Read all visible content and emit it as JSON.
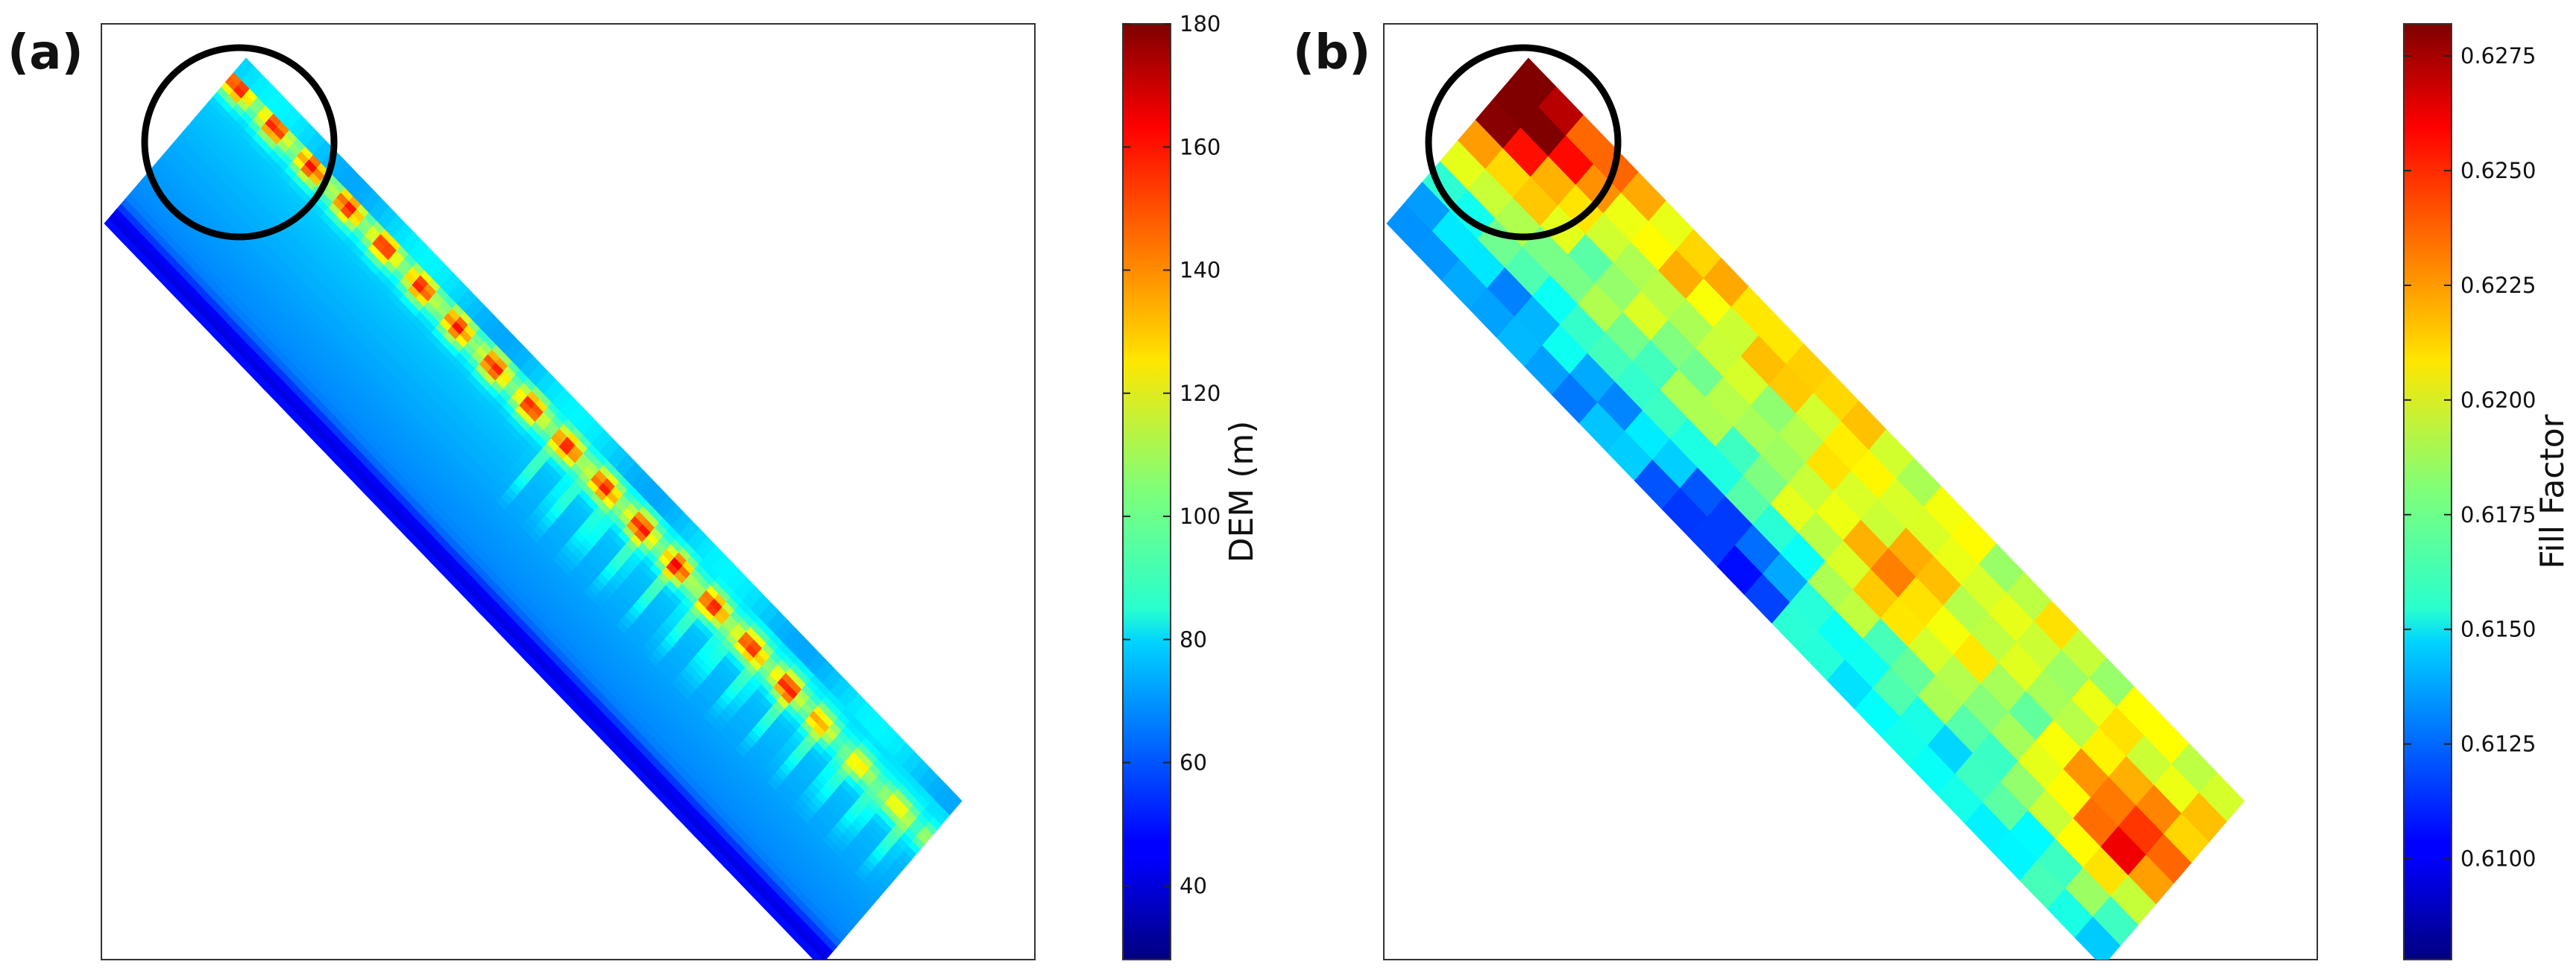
{
  "chart_data": [
    {
      "panel": "(a)",
      "type": "heatmap",
      "title": "",
      "xlabel": "",
      "ylabel": "",
      "colormap": "jet",
      "colorbar": {
        "label": "DEM (m)",
        "min": 28,
        "max": 180,
        "ticks": [
          40,
          60,
          80,
          100,
          120,
          140,
          160,
          180
        ]
      },
      "annotation": "circle marking highlighted region at top-left of strip",
      "description_values": {
        "typical_background": 75,
        "ridge_crest_max": 170
      }
    },
    {
      "panel": "(b)",
      "type": "heatmap",
      "title": "",
      "xlabel": "",
      "ylabel": "",
      "colormap": "jet",
      "colorbar": {
        "label": "Fill Factor",
        "min": 0.6078,
        "max": 0.6282,
        "ticks": [
          0.61,
          0.6125,
          0.615,
          0.6175,
          0.62,
          0.6225,
          0.625,
          0.6275
        ],
        "tick_labels": [
          "0.6100",
          "0.6125",
          "0.6150",
          "0.6175",
          "0.6200",
          "0.6225",
          "0.6250",
          "0.6275"
        ]
      },
      "annotation": "circle marking highlighted region at top-left of strip",
      "grid": {
        "along_cells": 26,
        "across_cells": 8
      }
    }
  ]
}
